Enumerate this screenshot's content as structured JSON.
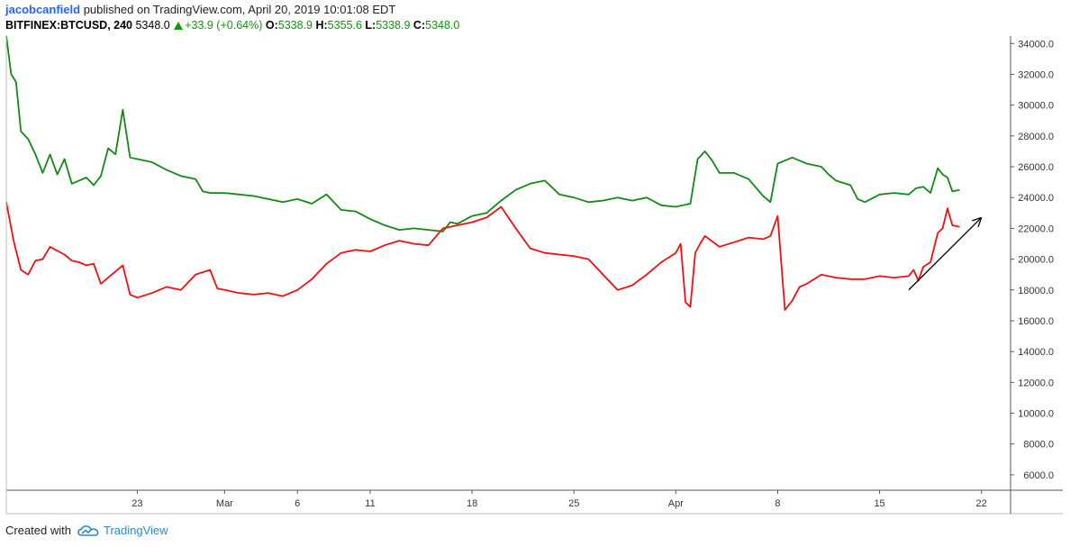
{
  "header": {
    "username": "jacobcanfield",
    "published_text": "published on TradingView.com, April 20, 2019 10:01:08 EDT"
  },
  "ticker": {
    "symbol": "BITFINEX:BTCUSD, 240",
    "last": "5348.0",
    "change": "+33.9 (+0.64%)",
    "open_label": "O:",
    "open": "5338.9",
    "high_label": "H:",
    "high": "5355.6",
    "low_label": "L:",
    "low": "5338.9",
    "close_label": "C:",
    "close": "5348.0"
  },
  "footer": {
    "created_with": "Created with",
    "brand": "TradingView",
    "logo_icon": "tradingview-cloud-icon"
  },
  "colors": {
    "green_series": "#138a13",
    "red_series": "#ee1111",
    "arrow": "#000000",
    "axis": "#555555"
  },
  "chart_data": {
    "type": "line",
    "x_axis_type": "date",
    "x_range": [
      "2019-02-14",
      "2019-04-24"
    ],
    "ylim": [
      5000,
      34600
    ],
    "y_ticks": [
      6000,
      8000,
      10000,
      12000,
      14000,
      16000,
      18000,
      20000,
      22000,
      24000,
      26000,
      28000,
      30000,
      32000,
      34000
    ],
    "y_tick_labels": [
      "6000.0",
      "8000.0",
      "10000.0",
      "12000.0",
      "14000.0",
      "16000.0",
      "18000.0",
      "20000.0",
      "22000.0",
      "24000.0",
      "26000.0",
      "28000.0",
      "30000.0",
      "32000.0",
      "34000.0"
    ],
    "x_ticks": [
      "2019-02-23",
      "2019-03-01",
      "2019-03-06",
      "2019-03-11",
      "2019-03-18",
      "2019-03-25",
      "2019-04-01",
      "2019-04-08",
      "2019-04-15",
      "2019-04-22"
    ],
    "x_tick_labels": [
      "23",
      "Mar",
      "6",
      "11",
      "18",
      "25",
      "Apr",
      "8",
      "15",
      "22"
    ],
    "grid": false,
    "legend": "none",
    "series": [
      {
        "color": "#138a13",
        "points": [
          [
            "2019-02-14",
            34500
          ],
          [
            "2019-02-14",
            32000
          ],
          [
            "2019-02-14",
            31500
          ],
          [
            "2019-02-15",
            28300
          ],
          [
            "2019-02-15",
            27800
          ],
          [
            "2019-02-16",
            26800
          ],
          [
            "2019-02-16",
            25600
          ],
          [
            "2019-02-17",
            26800
          ],
          [
            "2019-02-17",
            25500
          ],
          [
            "2019-02-18",
            26500
          ],
          [
            "2019-02-18",
            24900
          ],
          [
            "2019-02-19",
            25100
          ],
          [
            "2019-02-19",
            25300
          ],
          [
            "2019-02-20",
            24800
          ],
          [
            "2019-02-20",
            25400
          ],
          [
            "2019-02-21",
            27200
          ],
          [
            "2019-02-21",
            26800
          ],
          [
            "2019-02-22",
            29700
          ],
          [
            "2019-02-22",
            26600
          ],
          [
            "2019-02-23",
            26500
          ],
          [
            "2019-02-24",
            26300
          ],
          [
            "2019-02-25",
            25800
          ],
          [
            "2019-02-26",
            25400
          ],
          [
            "2019-02-27",
            25200
          ],
          [
            "2019-02-27",
            24400
          ],
          [
            "2019-02-28",
            24300
          ],
          [
            "2019-03-01",
            24300
          ],
          [
            "2019-03-02",
            24200
          ],
          [
            "2019-03-03",
            24100
          ],
          [
            "2019-03-04",
            23900
          ],
          [
            "2019-03-05",
            23700
          ],
          [
            "2019-03-06",
            23900
          ],
          [
            "2019-03-07",
            23600
          ],
          [
            "2019-03-08",
            24200
          ],
          [
            "2019-03-09",
            23200
          ],
          [
            "2019-03-10",
            23100
          ],
          [
            "2019-03-11",
            22600
          ],
          [
            "2019-03-12",
            22200
          ],
          [
            "2019-03-13",
            21900
          ],
          [
            "2019-03-14",
            22000
          ],
          [
            "2019-03-15",
            21900
          ],
          [
            "2019-03-16",
            21800
          ],
          [
            "2019-03-16",
            22400
          ],
          [
            "2019-03-17",
            22300
          ],
          [
            "2019-03-18",
            22800
          ],
          [
            "2019-03-19",
            23000
          ],
          [
            "2019-03-20",
            23800
          ],
          [
            "2019-03-21",
            24500
          ],
          [
            "2019-03-22",
            24900
          ],
          [
            "2019-03-23",
            25100
          ],
          [
            "2019-03-24",
            24200
          ],
          [
            "2019-03-25",
            24000
          ],
          [
            "2019-03-26",
            23700
          ],
          [
            "2019-03-27",
            23800
          ],
          [
            "2019-03-28",
            24000
          ],
          [
            "2019-03-29",
            23800
          ],
          [
            "2019-03-30",
            24000
          ],
          [
            "2019-03-31",
            23500
          ],
          [
            "2019-04-01",
            23400
          ],
          [
            "2019-04-02",
            23600
          ],
          [
            "2019-04-02",
            26500
          ],
          [
            "2019-04-03",
            27000
          ],
          [
            "2019-04-03",
            26400
          ],
          [
            "2019-04-04",
            25600
          ],
          [
            "2019-04-05",
            25600
          ],
          [
            "2019-04-06",
            25200
          ],
          [
            "2019-04-07",
            24100
          ],
          [
            "2019-04-07",
            23700
          ],
          [
            "2019-04-08",
            26200
          ],
          [
            "2019-04-09",
            26600
          ],
          [
            "2019-04-10",
            26200
          ],
          [
            "2019-04-11",
            26000
          ],
          [
            "2019-04-11",
            25500
          ],
          [
            "2019-04-12",
            25100
          ],
          [
            "2019-04-13",
            24800
          ],
          [
            "2019-04-13",
            23900
          ],
          [
            "2019-04-14",
            23700
          ],
          [
            "2019-04-15",
            24200
          ],
          [
            "2019-04-16",
            24300
          ],
          [
            "2019-04-17",
            24200
          ],
          [
            "2019-04-17",
            24600
          ],
          [
            "2019-04-18",
            24700
          ],
          [
            "2019-04-18",
            24300
          ],
          [
            "2019-04-19",
            25900
          ],
          [
            "2019-04-19",
            25500
          ],
          [
            "2019-04-19",
            25300
          ],
          [
            "2019-04-20",
            24400
          ],
          [
            "2019-04-20",
            24500
          ]
        ]
      },
      {
        "color": "#ee1111",
        "points": [
          [
            "2019-02-14",
            23700
          ],
          [
            "2019-02-14",
            21200
          ],
          [
            "2019-02-15",
            19300
          ],
          [
            "2019-02-15",
            19000
          ],
          [
            "2019-02-16",
            19900
          ],
          [
            "2019-02-16",
            20000
          ],
          [
            "2019-02-17",
            20800
          ],
          [
            "2019-02-18",
            20300
          ],
          [
            "2019-02-18",
            19900
          ],
          [
            "2019-02-19",
            19800
          ],
          [
            "2019-02-19",
            19600
          ],
          [
            "2019-02-20",
            19700
          ],
          [
            "2019-02-20",
            18400
          ],
          [
            "2019-02-21",
            18800
          ],
          [
            "2019-02-22",
            19600
          ],
          [
            "2019-02-22",
            17700
          ],
          [
            "2019-02-23",
            17500
          ],
          [
            "2019-02-24",
            17800
          ],
          [
            "2019-02-25",
            18200
          ],
          [
            "2019-02-26",
            18000
          ],
          [
            "2019-02-27",
            19000
          ],
          [
            "2019-02-28",
            19300
          ],
          [
            "2019-02-28",
            18100
          ],
          [
            "2019-03-01",
            18000
          ],
          [
            "2019-03-02",
            17800
          ],
          [
            "2019-03-03",
            17700
          ],
          [
            "2019-03-04",
            17800
          ],
          [
            "2019-03-05",
            17600
          ],
          [
            "2019-03-06",
            18000
          ],
          [
            "2019-03-07",
            18700
          ],
          [
            "2019-03-08",
            19700
          ],
          [
            "2019-03-09",
            20400
          ],
          [
            "2019-03-10",
            20600
          ],
          [
            "2019-03-11",
            20500
          ],
          [
            "2019-03-12",
            20900
          ],
          [
            "2019-03-13",
            21200
          ],
          [
            "2019-03-14",
            21000
          ],
          [
            "2019-03-15",
            20900
          ],
          [
            "2019-03-16",
            22000
          ],
          [
            "2019-03-17",
            22200
          ],
          [
            "2019-03-18",
            22400
          ],
          [
            "2019-03-19",
            22700
          ],
          [
            "2019-03-20",
            23400
          ],
          [
            "2019-03-21",
            22000
          ],
          [
            "2019-03-22",
            20700
          ],
          [
            "2019-03-23",
            20400
          ],
          [
            "2019-03-24",
            20300
          ],
          [
            "2019-03-25",
            20200
          ],
          [
            "2019-03-26",
            20000
          ],
          [
            "2019-03-27",
            19000
          ],
          [
            "2019-03-28",
            18000
          ],
          [
            "2019-03-29",
            18300
          ],
          [
            "2019-03-30",
            19000
          ],
          [
            "2019-03-31",
            19800
          ],
          [
            "2019-04-01",
            20400
          ],
          [
            "2019-04-01",
            21000
          ],
          [
            "2019-04-01",
            17200
          ],
          [
            "2019-04-02",
            16900
          ],
          [
            "2019-04-02",
            20400
          ],
          [
            "2019-04-02",
            21000
          ],
          [
            "2019-04-03",
            21500
          ],
          [
            "2019-04-04",
            20800
          ],
          [
            "2019-04-05",
            21100
          ],
          [
            "2019-04-06",
            21400
          ],
          [
            "2019-04-07",
            21300
          ],
          [
            "2019-04-07",
            21500
          ],
          [
            "2019-04-08",
            22800
          ],
          [
            "2019-04-08",
            16700
          ],
          [
            "2019-04-09",
            17300
          ],
          [
            "2019-04-09",
            18200
          ],
          [
            "2019-04-10",
            18400
          ],
          [
            "2019-04-11",
            19000
          ],
          [
            "2019-04-12",
            18800
          ],
          [
            "2019-04-13",
            18700
          ],
          [
            "2019-04-14",
            18700
          ],
          [
            "2019-04-15",
            18900
          ],
          [
            "2019-04-16",
            18800
          ],
          [
            "2019-04-17",
            18900
          ],
          [
            "2019-04-17",
            19300
          ],
          [
            "2019-04-17",
            18600
          ],
          [
            "2019-04-18",
            19500
          ],
          [
            "2019-04-18",
            19800
          ],
          [
            "2019-04-19",
            21700
          ],
          [
            "2019-04-19",
            22000
          ],
          [
            "2019-04-19",
            23300
          ],
          [
            "2019-04-20",
            22200
          ],
          [
            "2019-04-20",
            22100
          ]
        ]
      }
    ],
    "annotation_arrow": {
      "from": [
        "2019-04-17",
        18000
      ],
      "to": [
        "2019-04-22",
        22700
      ]
    }
  }
}
